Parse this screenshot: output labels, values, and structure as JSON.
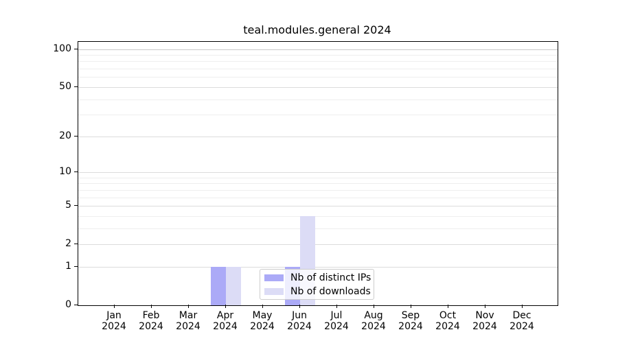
{
  "chart_data": {
    "type": "bar",
    "title": "teal.modules.general 2024",
    "categories": [
      "Jan",
      "Feb",
      "Mar",
      "Apr",
      "May",
      "Jun",
      "Jul",
      "Aug",
      "Sep",
      "Oct",
      "Nov",
      "Dec"
    ],
    "category_year": "2024",
    "series": [
      {
        "name": "Nb of distinct IPs",
        "color": "#abaaf7",
        "values": [
          0,
          0,
          0,
          1,
          0,
          1,
          0,
          0,
          0,
          0,
          0,
          0
        ]
      },
      {
        "name": "Nb of downloads",
        "color": "#dcdcf6",
        "values": [
          0,
          0,
          0,
          1,
          0,
          4,
          0,
          0,
          0,
          0,
          0,
          0
        ]
      }
    ],
    "yscale": "log1p",
    "ylim": [
      0,
      116
    ],
    "y_major_ticks": [
      0,
      1,
      2,
      5,
      10,
      20,
      50,
      100
    ],
    "y_minor_gridlines": [
      3,
      4,
      6,
      7,
      8,
      9,
      30,
      40,
      60,
      70,
      80,
      90
    ],
    "grid": true,
    "legend_position": "lower center",
    "xlabel": "",
    "ylabel": ""
  },
  "colors": {
    "axis": "#000000",
    "grid_major": "#dcdcdc",
    "grid_major_top": "#c8c8c8",
    "grid_minor": "#eeeeee",
    "legend_border": "#cccccc"
  }
}
